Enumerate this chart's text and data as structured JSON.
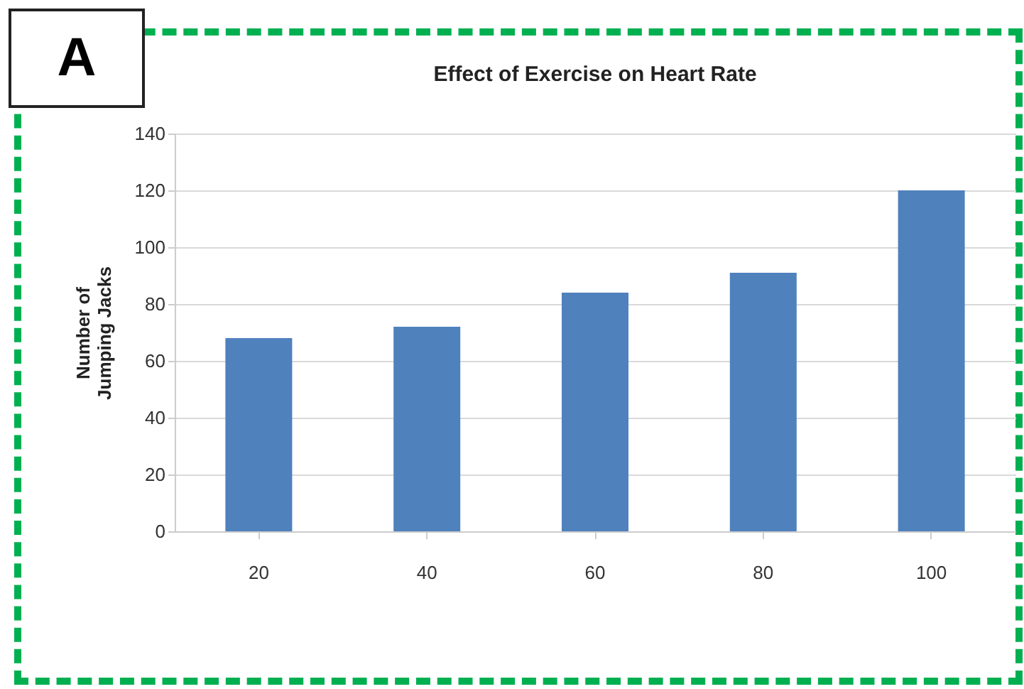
{
  "chart_data": {
    "type": "bar",
    "title": "Effect of Exercise on Heart Rate",
    "ylabel": "Number of Jumping Jacks",
    "annotations": [
      "A"
    ],
    "categories": [
      "20",
      "40",
      "60",
      "80",
      "100"
    ],
    "values": [
      68,
      72,
      84,
      91,
      120
    ],
    "color": "#4f81bd",
    "ylim": [
      0,
      140
    ],
    "yticks": [
      0,
      20,
      40,
      60,
      80,
      100,
      120,
      140
    ],
    "grid": "y"
  }
}
